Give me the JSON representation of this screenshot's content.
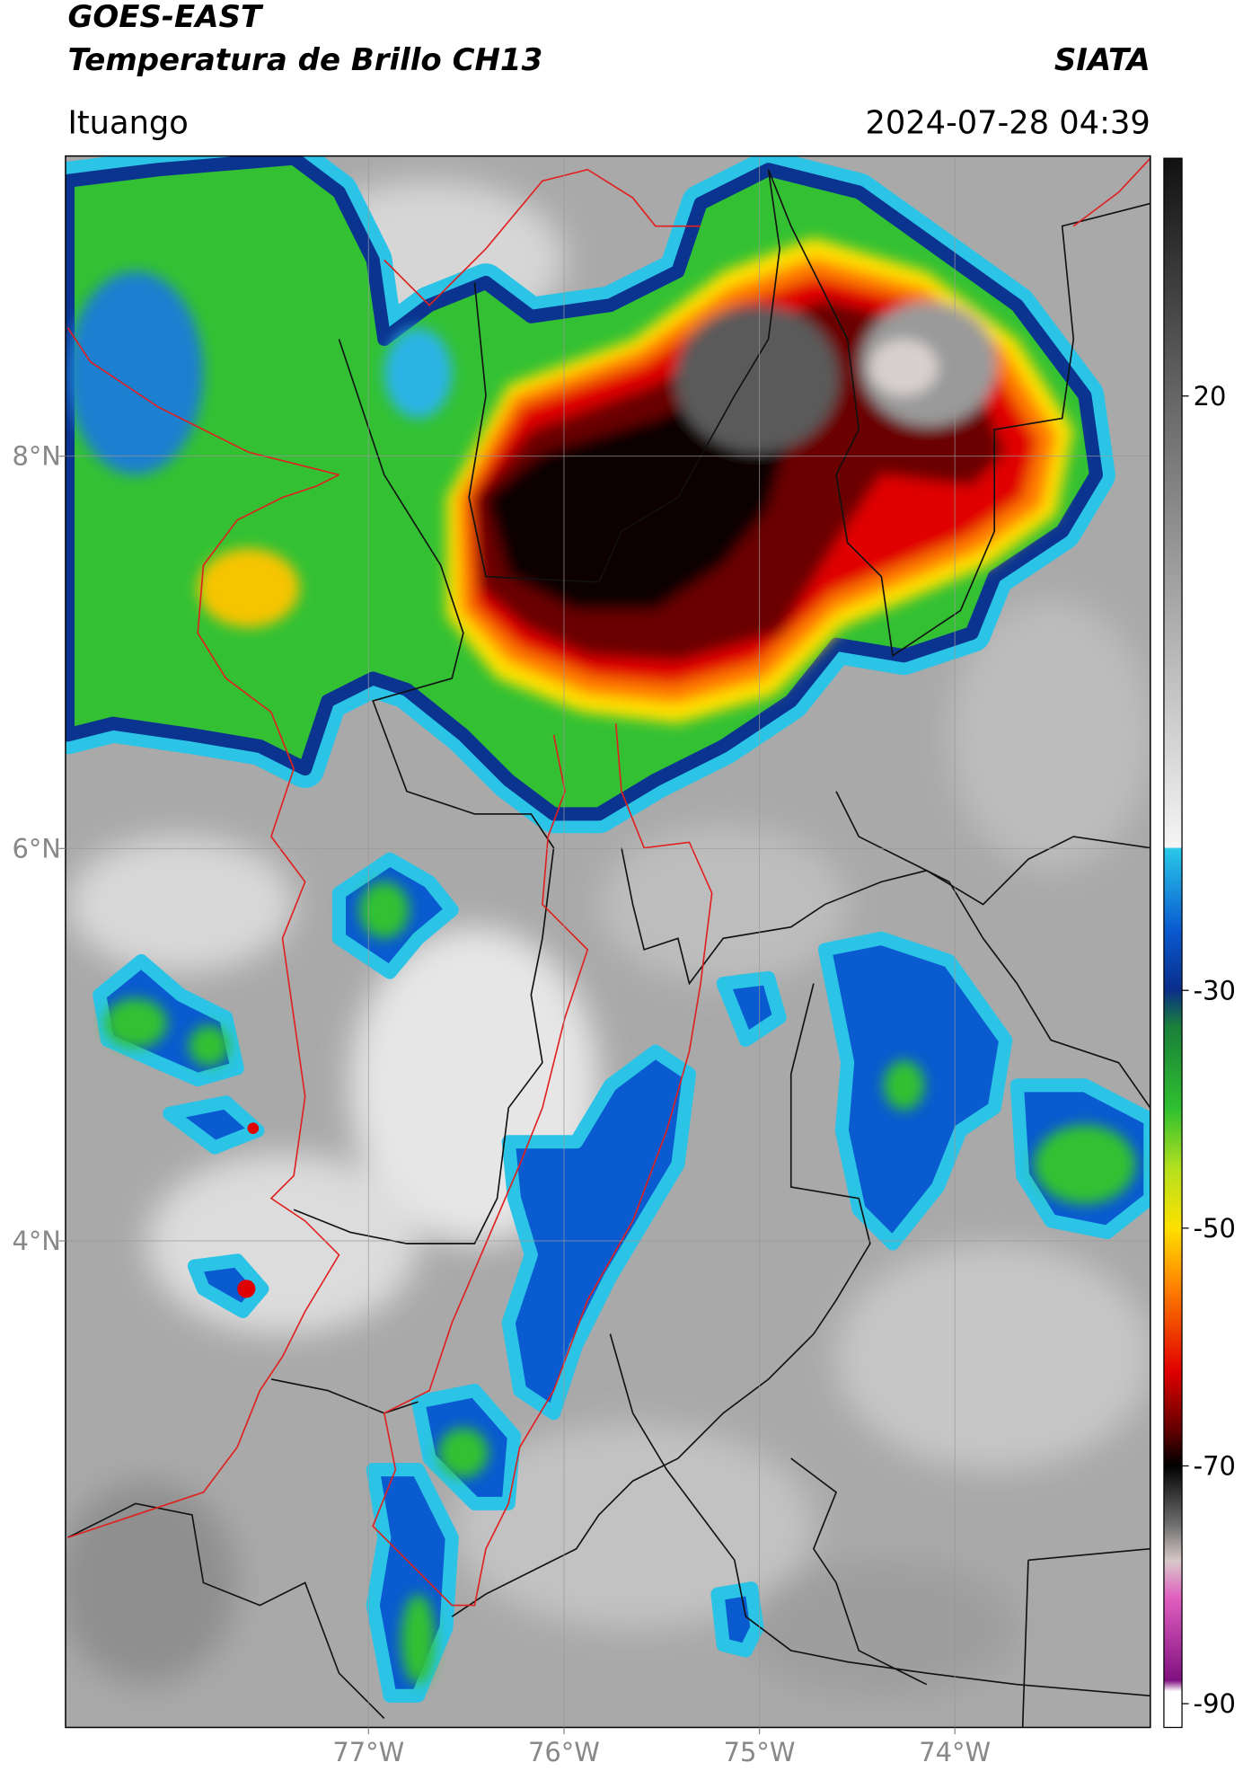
{
  "header": {
    "title": "GOES-EAST",
    "subtitle": "Temperatura de Brillo CH13",
    "source": "SIATA",
    "location": "Ituango",
    "datetime": "2024-07-28 04:39"
  },
  "map": {
    "xlim": [
      -78.55,
      -73.0
    ],
    "ylim": [
      1.52,
      9.53
    ],
    "xticks": [
      {
        "value": -77,
        "label": "77°W"
      },
      {
        "value": -76,
        "label": "76°W"
      },
      {
        "value": -75,
        "label": "75°W"
      },
      {
        "value": -74,
        "label": "74°W"
      }
    ],
    "yticks": [
      {
        "value": 4,
        "label": "4°N"
      },
      {
        "value": 6,
        "label": "6°N"
      },
      {
        "value": 8,
        "label": "8°N"
      }
    ],
    "grid": true
  },
  "colorbar": {
    "lim": [
      -92,
      40
    ],
    "ticks": [
      -90,
      -70,
      -50,
      -30,
      20
    ]
  }
}
